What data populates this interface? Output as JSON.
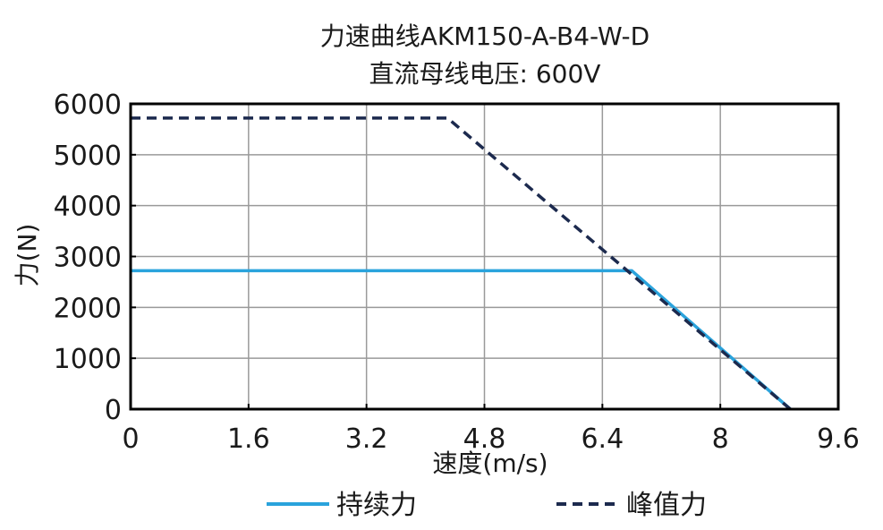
{
  "chart_data": {
    "type": "line",
    "title": "力速曲线AKM150-A-B4-W-D",
    "subtitle": "直流母线电压: 600V",
    "xlabel": "速度(m/s)",
    "ylabel": "力(N)",
    "xlim": [
      0,
      9.6
    ],
    "ylim": [
      0,
      6000
    ],
    "xticks": [
      0,
      1.6,
      3.2,
      4.8,
      6.4,
      8,
      9.6
    ],
    "xtick_labels": [
      "0",
      "1.6",
      "3.2",
      "4.8",
      "6.4",
      "8",
      "9.6"
    ],
    "yticks": [
      0,
      1000,
      2000,
      3000,
      4000,
      5000,
      6000
    ],
    "ytick_labels": [
      "0",
      "1000",
      "2000",
      "3000",
      "4000",
      "5000",
      "6000"
    ],
    "grid": true,
    "legend_position": "bottom",
    "series": [
      {
        "name": "持续力",
        "style": "solid",
        "color": "#2aa3dc",
        "x": [
          0,
          6.8,
          8.95
        ],
        "y": [
          2720,
          2720,
          0
        ]
      },
      {
        "name": "峰值力",
        "style": "dashed",
        "color": "#1c2a4e",
        "x": [
          0,
          4.3,
          8.95
        ],
        "y": [
          5720,
          5720,
          0
        ]
      }
    ]
  }
}
